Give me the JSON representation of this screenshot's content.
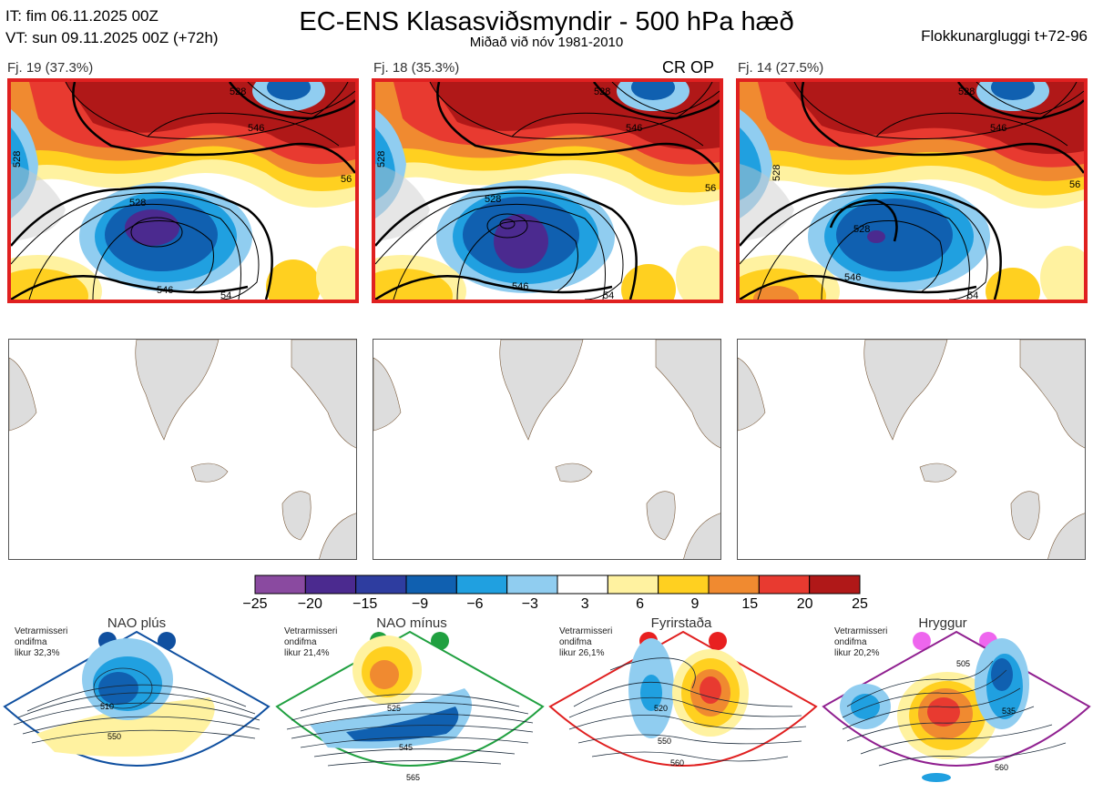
{
  "header": {
    "init_time": "IT: fim 06.11.2025 00Z",
    "valid_time": "VT: sun 09.11.2025 00Z  (+72h)",
    "title": "EC-ENS Klasasviðsmyndir - 500 hPa hæð",
    "subtitle": "Miðað við nóv 1981-2010",
    "window": "Flokkunargluggi t+72-96"
  },
  "clusters": [
    {
      "label": "Fj. 19 (37.3%)",
      "contours": [
        "528",
        "546",
        "528",
        "546",
        "54",
        "56",
        "528"
      ]
    },
    {
      "label": "Fj. 18 (35.3%)",
      "contours": [
        "528",
        "546",
        "528",
        "546",
        "54",
        "56",
        "528"
      ],
      "badge": "CR OP"
    },
    {
      "label": "Fj. 14 (27.5%)",
      "contours": [
        "528",
        "546",
        "528",
        "546",
        "54",
        "56",
        "528"
      ]
    }
  ],
  "colorbar": {
    "ticks": [
      "−25",
      "−20",
      "−15",
      "−9",
      "−6",
      "−3",
      "3",
      "6",
      "9",
      "15",
      "20",
      "25"
    ],
    "colors": [
      "#8a4aa0",
      "#4b2a8f",
      "#2e3da0",
      "#1060b0",
      "#20a0e0",
      "#90cdf0",
      "#ffffff",
      "#fff2a0",
      "#ffd020",
      "#f08a30",
      "#e83a30",
      "#b01818"
    ]
  },
  "regimes": [
    {
      "name": "NAO plús",
      "info": [
        "Vetrarmisseri",
        "ondifma",
        "likur 32,3%"
      ],
      "color": "#1050a0",
      "dot_color": "#1050a0",
      "contours": [
        "510",
        "550"
      ]
    },
    {
      "name": "NAO mínus",
      "info": [
        "Vetrarmisseri",
        "ondifma",
        "likur 21,4%"
      ],
      "color": "#20a040",
      "dot_color": "#20a040",
      "contours": [
        "525",
        "545",
        "565"
      ]
    },
    {
      "name": "Fyrirstaða",
      "info": [
        "Vetrarmisseri",
        "ondifma",
        "likur 26,1%"
      ],
      "color": "#e02020",
      "dot_color": "#e82020",
      "contours": [
        "520",
        "550",
        "560"
      ]
    },
    {
      "name": "Hryggur",
      "info": [
        "Vetrarmisseri",
        "ondifma",
        "likur 20,2%"
      ],
      "color": "#902090",
      "dot_color": "#ee66ee",
      "contours": [
        "505",
        "535",
        "560"
      ]
    }
  ]
}
